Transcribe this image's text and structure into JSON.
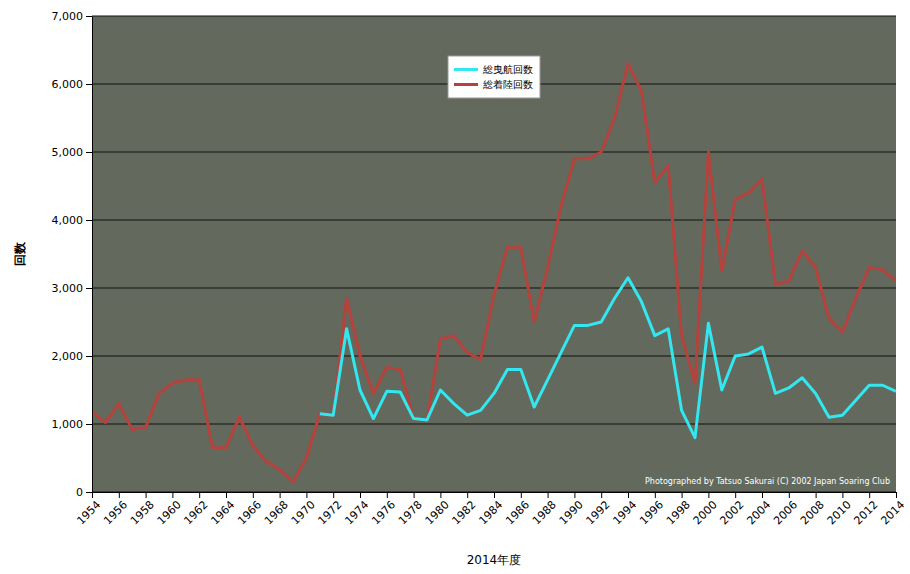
{
  "chart_data": {
    "type": "line",
    "xlabel": "2014年度",
    "ylabel": "回数",
    "x": [
      1954,
      1955,
      1956,
      1957,
      1958,
      1959,
      1960,
      1961,
      1962,
      1963,
      1964,
      1965,
      1966,
      1967,
      1968,
      1969,
      1970,
      1971,
      1972,
      1973,
      1974,
      1975,
      1976,
      1977,
      1978,
      1979,
      1980,
      1981,
      1982,
      1983,
      1984,
      1985,
      1986,
      1987,
      1988,
      1989,
      1990,
      1991,
      1992,
      1993,
      1994,
      1995,
      1996,
      1997,
      1998,
      1999,
      2000,
      2001,
      2002,
      2003,
      2004,
      2005,
      2006,
      2007,
      2008,
      2009,
      2010,
      2011,
      2012,
      2013,
      2014
    ],
    "xlim": [
      1954,
      2014
    ],
    "xticks": [
      1954,
      1956,
      1958,
      1960,
      1962,
      1964,
      1966,
      1968,
      1970,
      1972,
      1974,
      1976,
      1978,
      1980,
      1982,
      1984,
      1986,
      1988,
      1990,
      1992,
      1994,
      1996,
      1998,
      2000,
      2002,
      2004,
      2006,
      2008,
      2010,
      2012,
      2014
    ],
    "ylim": [
      0,
      7000
    ],
    "yticks": [
      0,
      {
        "value": 1000,
        "label": "1,000"
      },
      {
        "value": 2000,
        "label": "2,000"
      },
      {
        "value": 3000,
        "label": "3,000"
      },
      {
        "value": 4000,
        "label": "4,000"
      },
      {
        "value": 5000,
        "label": "5,000"
      },
      {
        "value": 6000,
        "label": "6,000"
      },
      {
        "value": 7000,
        "label": "7,000"
      }
    ],
    "grid": true,
    "legend": "top",
    "series": [
      {
        "name": "総曳航回数",
        "color": "#33e6f0",
        "values": [
          null,
          null,
          null,
          null,
          null,
          null,
          null,
          null,
          null,
          null,
          null,
          null,
          null,
          null,
          null,
          null,
          null,
          1150,
          1130,
          2400,
          1500,
          1080,
          1480,
          1470,
          1080,
          1060,
          1500,
          1300,
          1130,
          1200,
          1450,
          1800,
          1800,
          1250,
          1650,
          2050,
          2450,
          2450,
          2500,
          2850,
          3150,
          2800,
          2300,
          2400,
          1200,
          800,
          2480,
          1500,
          2000,
          2030,
          2130,
          1450,
          1530,
          1680,
          1450,
          1100,
          1130,
          1350,
          1570,
          1570,
          1480
        ]
      },
      {
        "name": "総着陸回数",
        "color": "#b5423c",
        "values": [
          1180,
          1020,
          1300,
          920,
          950,
          1450,
          1600,
          1650,
          1650,
          650,
          650,
          1100,
          680,
          450,
          330,
          150,
          500,
          1150,
          1130,
          2850,
          2000,
          1450,
          1830,
          1800,
          1080,
          1050,
          2250,
          2300,
          2050,
          1950,
          2900,
          3600,
          3600,
          2500,
          3300,
          4200,
          4900,
          4900,
          5000,
          5500,
          6300,
          5900,
          4550,
          4800,
          2300,
          1600,
          5000,
          3250,
          4300,
          4400,
          4600,
          3050,
          3100,
          3550,
          3300,
          2550,
          2350,
          2850,
          3300,
          3270,
          3100
        ]
      }
    ],
    "annotations": [
      {
        "text": "Photographed by Tatsuo Sakurai (C) 2002 Japan Soaring Club"
      }
    ]
  }
}
